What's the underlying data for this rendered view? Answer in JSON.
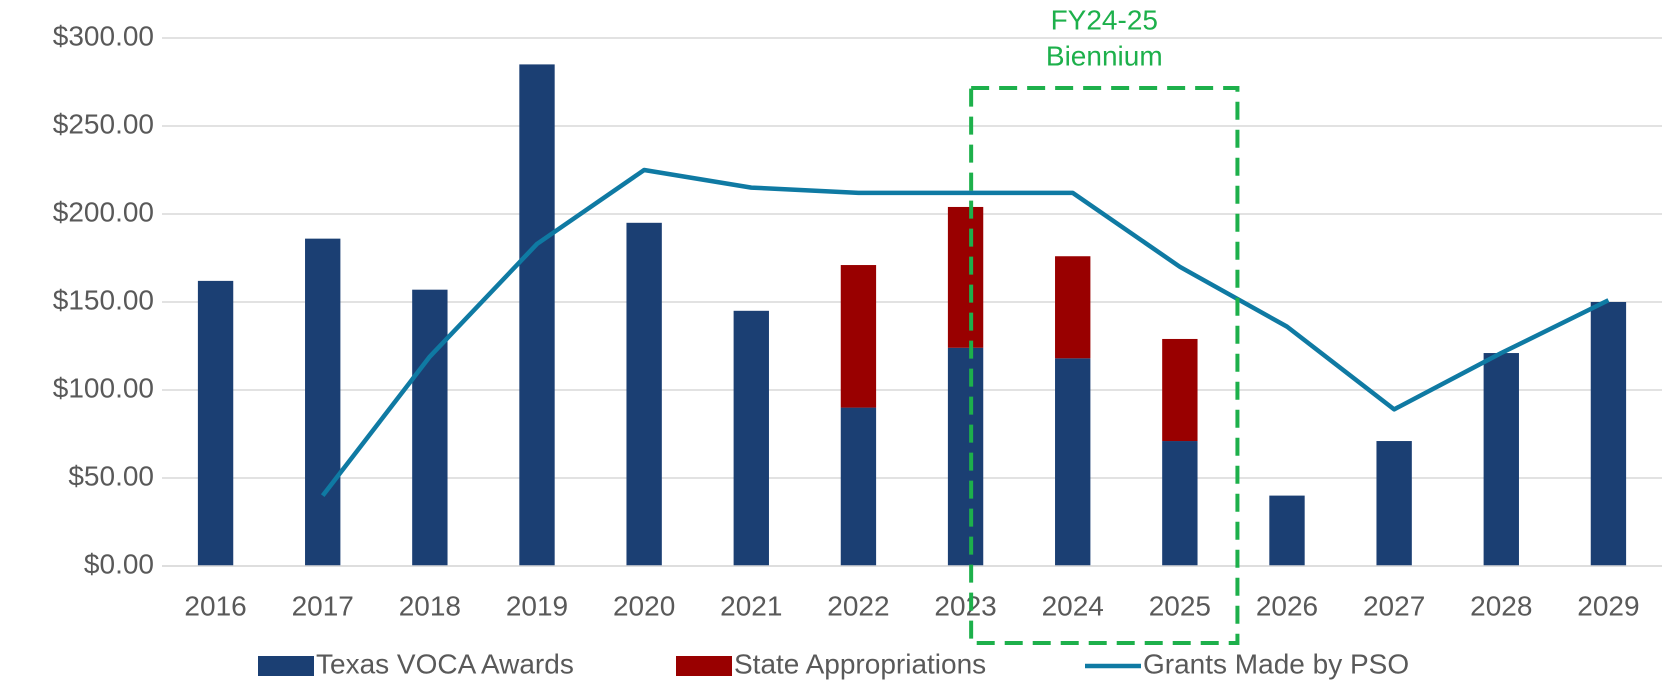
{
  "chart_data": {
    "type": "bar",
    "stacked": true,
    "categories": [
      "2016",
      "2017",
      "2018",
      "2019",
      "2020",
      "2021",
      "2022",
      "2023",
      "2024",
      "2025",
      "2026",
      "2027",
      "2028",
      "2029"
    ],
    "series": [
      {
        "name": "Texas VOCA Awards",
        "color": "#1b3f73",
        "values": [
          162,
          186,
          157,
          285,
          195,
          145,
          90,
          124,
          118,
          71,
          40,
          71,
          121,
          150
        ]
      },
      {
        "name": "State Appropriations",
        "color": "#990000",
        "values": [
          null,
          null,
          null,
          null,
          null,
          null,
          81,
          80,
          58,
          58,
          null,
          null,
          null,
          null
        ]
      },
      {
        "name": "Grants Made by PSO",
        "color": "#0f7aa3",
        "type": "line",
        "values": [
          null,
          40,
          119,
          183,
          225,
          215,
          212,
          212,
          212,
          170,
          136,
          89,
          121,
          151
        ]
      }
    ],
    "ylim": [
      0,
      300
    ],
    "yticks": [
      {
        "value": 0,
        "label": "$0.00"
      },
      {
        "value": 50,
        "label": "$50.00"
      },
      {
        "value": 100,
        "label": "$100.00"
      },
      {
        "value": 150,
        "label": "$150.00"
      },
      {
        "value": 200,
        "label": "$200.00"
      },
      {
        "value": 250,
        "label": "$250.00"
      },
      {
        "value": 300,
        "label": "$300.00"
      }
    ],
    "grid": true,
    "legend": "bottom",
    "annotation": {
      "lines": [
        "FY24-25",
        "Biennium"
      ],
      "color": "#1db04b"
    }
  }
}
